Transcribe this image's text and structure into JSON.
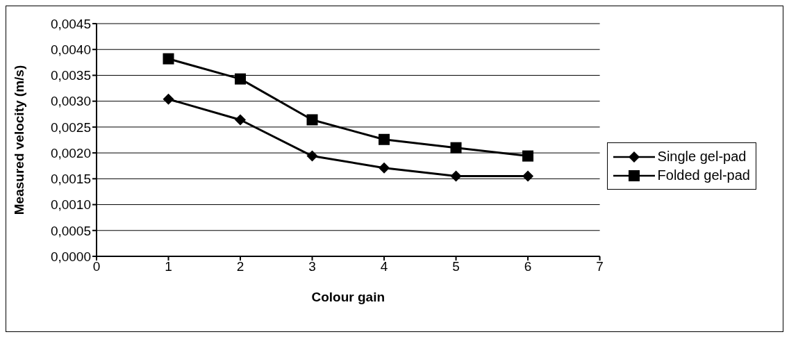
{
  "chart_data": {
    "type": "line",
    "xlabel": "Colour gain",
    "ylabel": "Measured velocity (m/s)",
    "x": [
      1,
      2,
      3,
      4,
      5,
      6
    ],
    "series": [
      {
        "name": "Single gel-pad",
        "color": "#000000",
        "marker": "diamond",
        "values": [
          0.00304,
          0.00264,
          0.00194,
          0.00171,
          0.00155,
          0.00155
        ]
      },
      {
        "name": "Folded gel-pad",
        "color": "#000000",
        "marker": "square",
        "values": [
          0.00382,
          0.00343,
          0.00264,
          0.00226,
          0.0021,
          0.00194
        ]
      }
    ],
    "xlim": [
      0,
      7
    ],
    "xticks": [
      0,
      1,
      2,
      3,
      4,
      5,
      6,
      7
    ],
    "ylim": [
      0,
      0.0045
    ],
    "yticks": [
      {
        "value": 0,
        "label": "0,0000"
      },
      {
        "value": 0.0005,
        "label": "0,0005"
      },
      {
        "value": 0.001,
        "label": "0,0010"
      },
      {
        "value": 0.0015,
        "label": "0,0015"
      },
      {
        "value": 0.002,
        "label": "0,0020"
      },
      {
        "value": 0.0025,
        "label": "0,0025"
      },
      {
        "value": 0.003,
        "label": "0,0030"
      },
      {
        "value": 0.0035,
        "label": "0,0035"
      },
      {
        "value": 0.004,
        "label": "0,0040"
      },
      {
        "value": 0.0045,
        "label": "0,0045"
      }
    ],
    "grid": "y",
    "legend": "right",
    "line_style": "solid"
  }
}
